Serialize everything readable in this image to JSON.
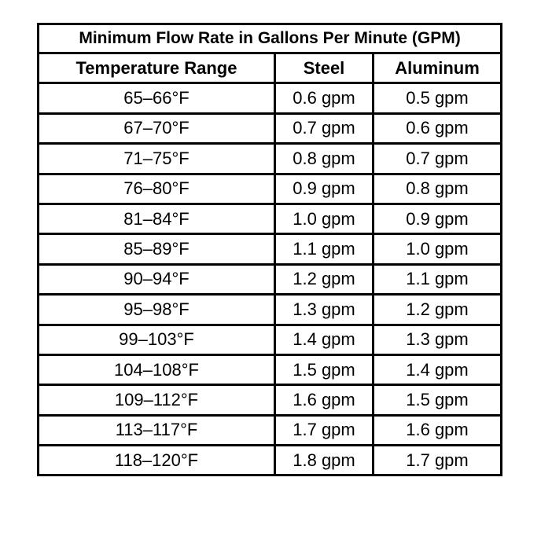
{
  "table": {
    "title": "Minimum Flow Rate in Gallons Per Minute (GPM)",
    "columns": [
      "Temperature Range",
      "Steel",
      "Aluminum"
    ],
    "rows": [
      [
        "65–66°F",
        "0.6 gpm",
        "0.5 gpm"
      ],
      [
        "67–70°F",
        "0.7 gpm",
        "0.6 gpm"
      ],
      [
        "71–75°F",
        "0.8 gpm",
        "0.7 gpm"
      ],
      [
        "76–80°F",
        "0.9 gpm",
        "0.8 gpm"
      ],
      [
        "81–84°F",
        "1.0 gpm",
        "0.9 gpm"
      ],
      [
        "85–89°F",
        "1.1 gpm",
        "1.0 gpm"
      ],
      [
        "90–94°F",
        "1.2 gpm",
        "1.1 gpm"
      ],
      [
        "95–98°F",
        "1.3 gpm",
        "1.2 gpm"
      ],
      [
        "99–103°F",
        "1.4 gpm",
        "1.3 gpm"
      ],
      [
        "104–108°F",
        "1.5 gpm",
        "1.4 gpm"
      ],
      [
        "109–112°F",
        "1.6 gpm",
        "1.5 gpm"
      ],
      [
        "113–117°F",
        "1.7 gpm",
        "1.6 gpm"
      ],
      [
        "118–120°F",
        "1.8 gpm",
        "1.7 gpm"
      ]
    ]
  }
}
